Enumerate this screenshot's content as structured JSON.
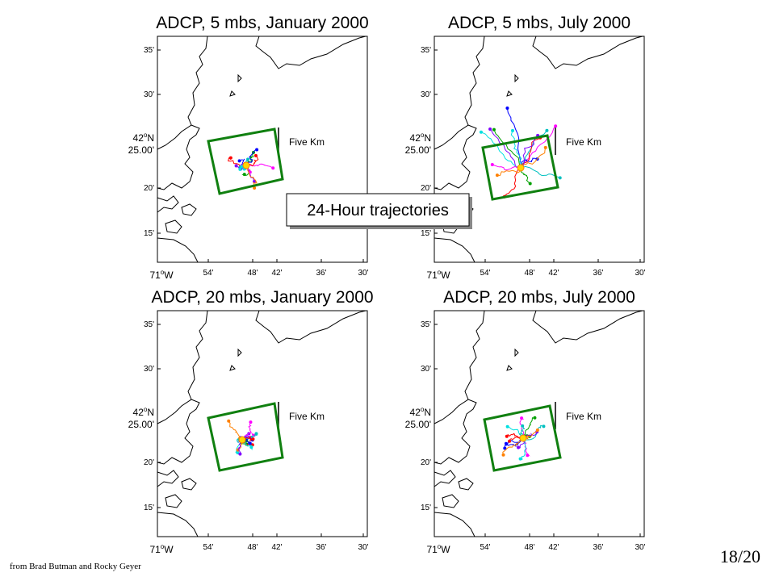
{
  "panels": [
    {
      "title": "ADCP, 5 mbs, January 2000"
    },
    {
      "title": "ADCP, 5 mbs, July 2000"
    },
    {
      "title": "ADCP, 20 mbs, January 2000"
    },
    {
      "title": "ADCP, 20 mbs, July 2000"
    }
  ],
  "y_labels": [
    "35'",
    "30'",
    "20'",
    "15'"
  ],
  "y_center": {
    "degrees": "42",
    "sup": "o",
    "hemisphere": "N",
    "minutes": "25.00'"
  },
  "x_first": {
    "degrees": "71",
    "sup": "o",
    "hemisphere": "W"
  },
  "x_labels": [
    "54'",
    "48'",
    "42'",
    "36'",
    "30'"
  ],
  "scale_label": "Five Km",
  "callout": "24-Hour trajectories",
  "credit": "from Brad Butman and Rocky Geyer",
  "page_number": "18/20"
}
